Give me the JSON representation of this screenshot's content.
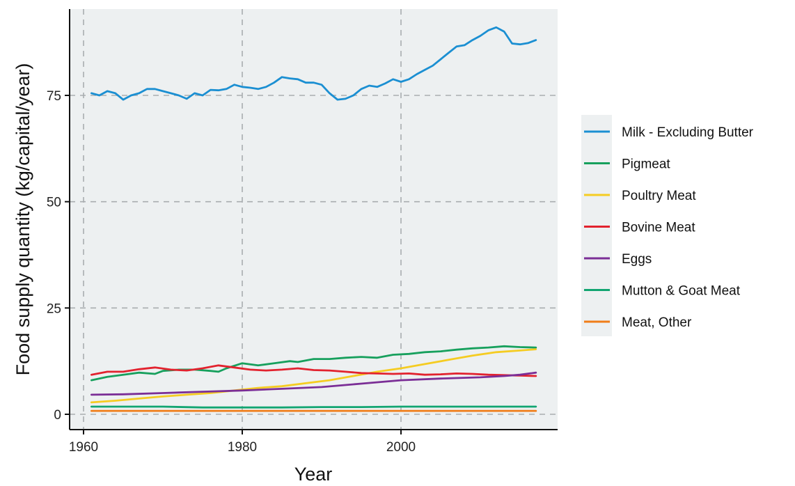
{
  "chart_data": {
    "type": "line",
    "xlabel": "Year",
    "ylabel": "Food supply quantity (kg/capital/year)",
    "xlim": [
      1960,
      2018
    ],
    "ylim": [
      -3,
      96
    ],
    "x_ticks": [
      1960,
      1980,
      2000
    ],
    "y_ticks": [
      0,
      25,
      50,
      75
    ],
    "grid": true,
    "legend_position": "right",
    "background": "#edf0f1",
    "series": [
      {
        "name": "Milk - Excluding Butter",
        "color": "#1b8fd2",
        "x": [
          1961,
          1962,
          1963,
          1964,
          1965,
          1966,
          1967,
          1968,
          1969,
          1970,
          1971,
          1972,
          1973,
          1974,
          1975,
          1976,
          1977,
          1978,
          1979,
          1980,
          1981,
          1982,
          1983,
          1984,
          1985,
          1986,
          1987,
          1988,
          1989,
          1990,
          1991,
          1992,
          1993,
          1994,
          1995,
          1996,
          1997,
          1998,
          1999,
          2000,
          2001,
          2002,
          2003,
          2004,
          2005,
          2006,
          2007,
          2008,
          2009,
          2010,
          2011,
          2012,
          2013,
          2014,
          2015,
          2016,
          2017
        ],
        "values": [
          75.5,
          75.0,
          76.0,
          75.5,
          74.0,
          75.0,
          75.5,
          76.5,
          76.5,
          76.0,
          75.5,
          75.0,
          74.2,
          75.5,
          75.0,
          76.3,
          76.2,
          76.5,
          77.5,
          77.0,
          76.8,
          76.5,
          77.0,
          78.0,
          79.3,
          79.0,
          78.8,
          78.0,
          78.0,
          77.5,
          75.5,
          74.0,
          74.2,
          75.0,
          76.5,
          77.3,
          77.0,
          77.8,
          78.8,
          78.2,
          78.8,
          80.0,
          81.0,
          82.0,
          83.5,
          85.0,
          86.5,
          86.8,
          88.0,
          89.0,
          90.3,
          91.0,
          90.0,
          87.2,
          87.0,
          87.3,
          88.0
        ]
      },
      {
        "name": "Pigmeat",
        "color": "#17a05d",
        "x": [
          1961,
          1963,
          1965,
          1967,
          1969,
          1970,
          1972,
          1974,
          1976,
          1977,
          1978,
          1980,
          1982,
          1984,
          1986,
          1987,
          1989,
          1991,
          1993,
          1995,
          1997,
          1999,
          2001,
          2003,
          2005,
          2007,
          2009,
          2011,
          2013,
          2015,
          2017
        ],
        "values": [
          8.0,
          8.8,
          9.3,
          9.8,
          9.5,
          10.2,
          10.5,
          10.5,
          10.2,
          10.0,
          10.8,
          12.0,
          11.5,
          12.0,
          12.5,
          12.3,
          13.0,
          13.0,
          13.3,
          13.5,
          13.3,
          14.0,
          14.2,
          14.6,
          14.8,
          15.2,
          15.5,
          15.7,
          16.0,
          15.8,
          15.7
        ]
      },
      {
        "name": "Poultry Meat",
        "color": "#f5cc22",
        "x": [
          1961,
          1964,
          1967,
          1970,
          1973,
          1976,
          1979,
          1982,
          1985,
          1988,
          1991,
          1994,
          1997,
          2000,
          2003,
          2006,
          2009,
          2012,
          2015,
          2017
        ],
        "values": [
          2.8,
          3.2,
          3.7,
          4.2,
          4.6,
          5.0,
          5.6,
          6.2,
          6.6,
          7.3,
          8.0,
          9.0,
          10.0,
          10.8,
          11.8,
          12.8,
          13.8,
          14.6,
          15.0,
          15.3
        ]
      },
      {
        "name": "Bovine Meat",
        "color": "#e2222e",
        "x": [
          1961,
          1963,
          1965,
          1967,
          1969,
          1971,
          1973,
          1975,
          1977,
          1979,
          1981,
          1983,
          1985,
          1987,
          1989,
          1991,
          1993,
          1995,
          1997,
          1999,
          2001,
          2003,
          2005,
          2007,
          2009,
          2011,
          2013,
          2015,
          2017
        ],
        "values": [
          9.3,
          10.0,
          10.0,
          10.6,
          11.0,
          10.5,
          10.3,
          10.8,
          11.5,
          11.0,
          10.5,
          10.3,
          10.5,
          10.8,
          10.4,
          10.3,
          10.0,
          9.7,
          9.6,
          9.5,
          9.6,
          9.3,
          9.4,
          9.6,
          9.5,
          9.3,
          9.2,
          9.1,
          9.0
        ]
      },
      {
        "name": "Eggs",
        "color": "#7b2e96",
        "x": [
          1961,
          1965,
          1970,
          1975,
          1980,
          1985,
          1990,
          1995,
          2000,
          2005,
          2010,
          2013,
          2015,
          2017
        ],
        "values": [
          4.6,
          4.7,
          5.0,
          5.3,
          5.6,
          6.0,
          6.4,
          7.2,
          8.0,
          8.4,
          8.7,
          9.0,
          9.3,
          9.8
        ]
      },
      {
        "name": "Mutton & Goat Meat",
        "color": "#12a571",
        "x": [
          1961,
          1965,
          1970,
          1975,
          1980,
          1985,
          1990,
          1995,
          2000,
          2005,
          2010,
          2015,
          2017
        ],
        "values": [
          1.8,
          1.8,
          1.8,
          1.6,
          1.6,
          1.6,
          1.7,
          1.7,
          1.8,
          1.8,
          1.8,
          1.8,
          1.8
        ]
      },
      {
        "name": "Meat, Other",
        "color": "#f07d18",
        "x": [
          1961,
          1970,
          1980,
          1990,
          2000,
          2010,
          2017
        ],
        "values": [
          0.8,
          0.8,
          0.8,
          0.8,
          0.8,
          0.8,
          0.8
        ]
      }
    ]
  }
}
